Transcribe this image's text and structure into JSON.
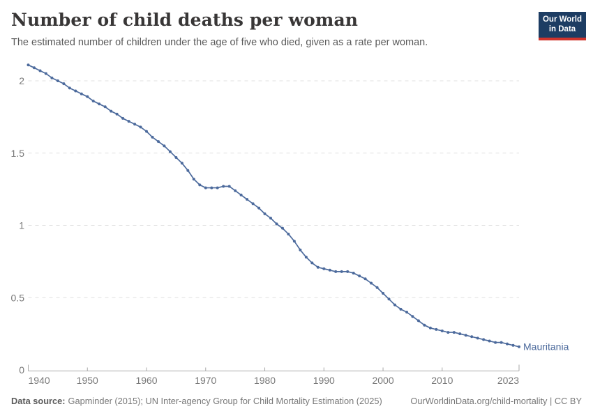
{
  "header": {
    "title": "Number of child deaths per woman",
    "subtitle": "The estimated number of children under the age of five who died, given as a rate per woman.",
    "logo": {
      "line1": "Our World",
      "line2": "in Data",
      "bg": "#1d3d63",
      "accent": "#d0342c"
    }
  },
  "chart_data": {
    "type": "line",
    "title": "Number of child deaths per woman",
    "xlabel": "",
    "ylabel": "",
    "xlim": [
      1940,
      2023
    ],
    "ylim": [
      0,
      2.15
    ],
    "grid": "horizontal-dashed",
    "legend_position": "end-of-line-label",
    "xticks": [
      1940,
      1950,
      1960,
      1970,
      1980,
      1990,
      2000,
      2010,
      2023
    ],
    "yticks": [
      0,
      0.5,
      1,
      1.5,
      2
    ],
    "series": [
      {
        "name": "Mauritania",
        "color": "#4C6A9C",
        "x": [
          1940,
          1941,
          1942,
          1943,
          1944,
          1945,
          1946,
          1947,
          1948,
          1949,
          1950,
          1951,
          1952,
          1953,
          1954,
          1955,
          1956,
          1957,
          1958,
          1959,
          1960,
          1961,
          1962,
          1963,
          1964,
          1965,
          1966,
          1967,
          1968,
          1969,
          1970,
          1971,
          1972,
          1973,
          1974,
          1975,
          1976,
          1977,
          1978,
          1979,
          1980,
          1981,
          1982,
          1983,
          1984,
          1985,
          1986,
          1987,
          1988,
          1989,
          1990,
          1991,
          1992,
          1993,
          1994,
          1995,
          1996,
          1997,
          1998,
          1999,
          2000,
          2001,
          2002,
          2003,
          2004,
          2005,
          2006,
          2007,
          2008,
          2009,
          2010,
          2011,
          2012,
          2013,
          2014,
          2015,
          2016,
          2017,
          2018,
          2019,
          2020,
          2021,
          2022,
          2023
        ],
        "values": [
          2.11,
          2.09,
          2.07,
          2.05,
          2.02,
          2.0,
          1.98,
          1.95,
          1.93,
          1.91,
          1.89,
          1.86,
          1.84,
          1.82,
          1.79,
          1.77,
          1.74,
          1.72,
          1.7,
          1.68,
          1.65,
          1.61,
          1.58,
          1.55,
          1.51,
          1.47,
          1.43,
          1.38,
          1.32,
          1.28,
          1.26,
          1.26,
          1.26,
          1.27,
          1.27,
          1.24,
          1.21,
          1.18,
          1.15,
          1.12,
          1.08,
          1.05,
          1.01,
          0.98,
          0.94,
          0.89,
          0.83,
          0.78,
          0.74,
          0.71,
          0.7,
          0.69,
          0.68,
          0.68,
          0.68,
          0.67,
          0.65,
          0.63,
          0.6,
          0.57,
          0.53,
          0.49,
          0.45,
          0.42,
          0.4,
          0.37,
          0.34,
          0.31,
          0.29,
          0.28,
          0.27,
          0.26,
          0.26,
          0.25,
          0.24,
          0.23,
          0.22,
          0.21,
          0.2,
          0.19,
          0.19,
          0.18,
          0.17,
          0.16
        ]
      }
    ],
    "colors": {
      "grid": "#e1e1e1",
      "axis": "#a8a8a8",
      "tick_label": "#787878"
    }
  },
  "footer": {
    "source_label": "Data source:",
    "source_text": "Gapminder (2015); UN Inter-agency Group for Child Mortality Estimation (2025)",
    "link_text": "OurWorldinData.org/child-mortality | CC BY"
  }
}
